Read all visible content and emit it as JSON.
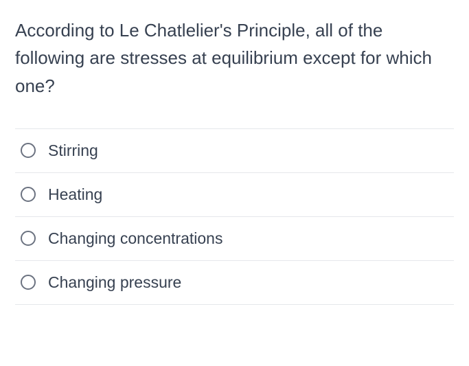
{
  "question": {
    "text": "According to Le Chatlelier's Principle, all of the following are stresses at equilibrium except for which one?"
  },
  "options": [
    {
      "label": "Stirring"
    },
    {
      "label": "Heating"
    },
    {
      "label": "Changing concentrations"
    },
    {
      "label": "Changing pressure"
    }
  ],
  "colors": {
    "text": "#374151",
    "border": "#e5e7eb",
    "radio_border": "#6b7280",
    "background": "#ffffff"
  },
  "typography": {
    "question_fontsize": 26,
    "option_fontsize": 23,
    "font_family": "-apple-system, BlinkMacSystemFont, Segoe UI, Helvetica Neue, Arial, sans-serif"
  }
}
